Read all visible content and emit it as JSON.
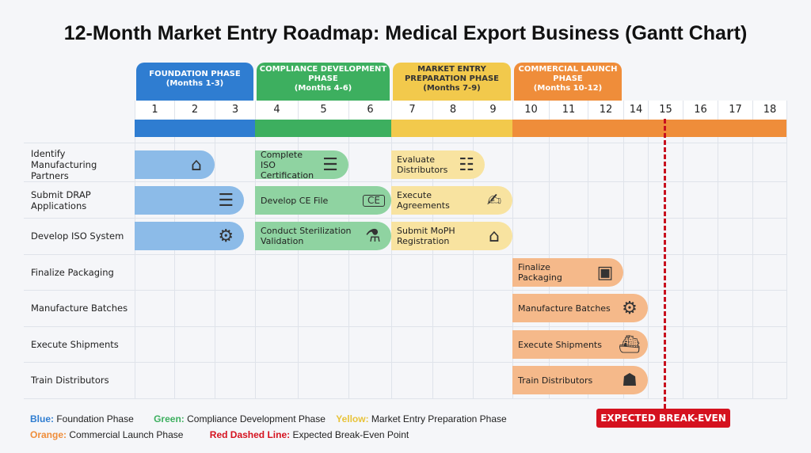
{
  "title": "12-Month Market Entry Roadmap: Medical Export Business (Gantt Chart)",
  "colors": {
    "blue": "#2f7dd1",
    "green": "#3daf5f",
    "yellow": "#f2c94c",
    "orange": "#ef8d3a",
    "red": "#d5121f",
    "blue_bar": "#8cbbe8",
    "green_bar": "#8fd3a1",
    "yellow_bar": "#f8e3a0",
    "orange_bar": "#f5b98a"
  },
  "chart_data": {
    "type": "gantt",
    "title": "12-Month Market Entry Roadmap: Medical Export Business (Gantt Chart)",
    "x_tick_labels": [
      "1",
      "2",
      "3",
      "4",
      "5",
      "6",
      "7",
      "8",
      "9",
      "10",
      "11",
      "12",
      "14",
      "15",
      "16",
      "17",
      "18"
    ],
    "phases": [
      {
        "name": "FOUNDATION PHASE",
        "range": "(Months 1-3)",
        "color": "blue",
        "start": 0,
        "end": 3
      },
      {
        "name": "COMPLIANCE DEVELOPMENT PHASE",
        "range": "(Months 4-6)",
        "color": "green",
        "start": 3,
        "end": 6
      },
      {
        "name": "MARKET ENTRY PREPARATION PHASE",
        "range": "(Months 7-9)",
        "color": "yellow",
        "start": 6,
        "end": 9
      },
      {
        "name": "COMMERCIAL LAUNCH PHASE",
        "range": "(Months 10-12)",
        "color": "orange",
        "start": 9,
        "end": 12
      }
    ],
    "rows": [
      {
        "label": "Identify Manufacturing Partners",
        "tasks": [
          {
            "text": "",
            "phase": "blue",
            "start": 0,
            "end": 2,
            "icon": "factory-icon",
            "glyph": "⌂"
          },
          {
            "text": "Complete ISO Certification",
            "phase": "green",
            "start": 3,
            "end": 5,
            "icon": "certificate-icon",
            "glyph": "☰"
          },
          {
            "text": "Evaluate Distributors",
            "phase": "yellow",
            "start": 6,
            "end": 8.3,
            "icon": "org-chart-icon",
            "glyph": "☷"
          }
        ]
      },
      {
        "label": "Submit DRAP Applications",
        "tasks": [
          {
            "text": "",
            "phase": "blue",
            "start": 0,
            "end": 2.73,
            "icon": "document-icon",
            "glyph": "☰"
          },
          {
            "text": "Develop CE File",
            "phase": "green",
            "start": 3,
            "end": 6,
            "icon": "ce-folder-icon",
            "glyph": "CE"
          },
          {
            "text": "Execute Agreements",
            "phase": "yellow",
            "start": 6,
            "end": 9,
            "icon": "handshake-icon",
            "glyph": "✍"
          }
        ]
      },
      {
        "label": "Develop ISO System",
        "tasks": [
          {
            "text": "",
            "phase": "blue",
            "start": 0,
            "end": 2.73,
            "icon": "gear-check-icon",
            "glyph": "⚙"
          },
          {
            "text": "Conduct Sterilization Validation",
            "phase": "green",
            "start": 3,
            "end": 6,
            "icon": "flask-icon",
            "glyph": "⚗"
          },
          {
            "text": "Submit MoPH Registration",
            "phase": "yellow",
            "start": 6,
            "end": 9,
            "icon": "government-building-icon",
            "glyph": "⌂"
          }
        ]
      },
      {
        "label": "Finalize Packaging",
        "tasks": [
          {
            "text": "Finalize Packaging",
            "phase": "orange",
            "start": 9,
            "end": 12,
            "icon": "box-icon",
            "glyph": "▣"
          }
        ]
      },
      {
        "label": "Manufacture Batches",
        "tasks": [
          {
            "text": "Manufacture Batches",
            "phase": "orange",
            "start": 9,
            "end": 13,
            "icon": "conveyor-icon",
            "glyph": "⚙"
          }
        ]
      },
      {
        "label": "Execute Shipments",
        "tasks": [
          {
            "text": "Execute Shipments",
            "phase": "orange",
            "start": 9,
            "end": 13,
            "icon": "ship-icon",
            "glyph": "⛴"
          }
        ]
      },
      {
        "label": "Train Distributors",
        "tasks": [
          {
            "text": "Train Distributors",
            "phase": "orange",
            "start": 9,
            "end": 13,
            "icon": "training-icon",
            "glyph": "☗"
          }
        ]
      }
    ],
    "break_even": {
      "label": "EXPECTED BREAK-EVEN",
      "position": 13.45
    }
  },
  "legend": [
    {
      "key": "Blue:",
      "text": "Foundation Phase",
      "color": "blue"
    },
    {
      "key": "Green:",
      "text": "Compliance Development Phase",
      "color": "green"
    },
    {
      "key": "Yellow:",
      "text": "Market Entry Preparation Phase",
      "color": "yellow"
    },
    {
      "key": "Orange:",
      "text": "Commercial Launch Phase",
      "color": "orange"
    },
    {
      "key": "Red Dashed Line:",
      "text": "Expected Break-Even Point",
      "color": "red"
    }
  ]
}
